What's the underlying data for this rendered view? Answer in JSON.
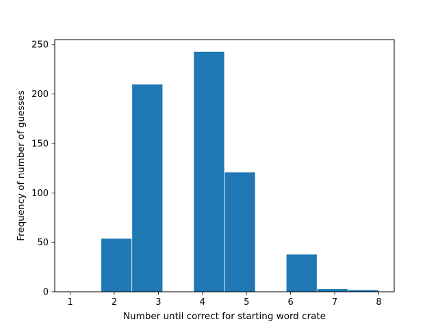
{
  "chart_data": {
    "type": "bar",
    "title": "",
    "xlabel": "Number until correct for starting word crate",
    "ylabel": "Frequency of number of guesses",
    "xlim": [
      0.65,
      8.35
    ],
    "ylim": [
      0,
      255
    ],
    "xticks": [
      1,
      2,
      3,
      4,
      5,
      6,
      7,
      8
    ],
    "yticks": [
      0,
      50,
      100,
      150,
      200,
      250
    ],
    "bins": [
      {
        "x0": 1.0,
        "x1": 1.7,
        "value": 0
      },
      {
        "x0": 1.7,
        "x1": 2.4,
        "value": 54
      },
      {
        "x0": 2.4,
        "x1": 3.1,
        "value": 210
      },
      {
        "x0": 3.1,
        "x1": 3.8,
        "value": 0
      },
      {
        "x0": 3.8,
        "x1": 4.5,
        "value": 243
      },
      {
        "x0": 4.5,
        "x1": 5.2,
        "value": 121
      },
      {
        "x0": 5.2,
        "x1": 5.9,
        "value": 0
      },
      {
        "x0": 5.9,
        "x1": 6.6,
        "value": 38
      },
      {
        "x0": 6.6,
        "x1": 7.3,
        "value": 3
      },
      {
        "x0": 7.3,
        "x1": 8.0,
        "value": 2
      }
    ],
    "bar_color": "#1f77b4",
    "edge_color": "#ffffff",
    "grid": false,
    "legend": "none"
  }
}
